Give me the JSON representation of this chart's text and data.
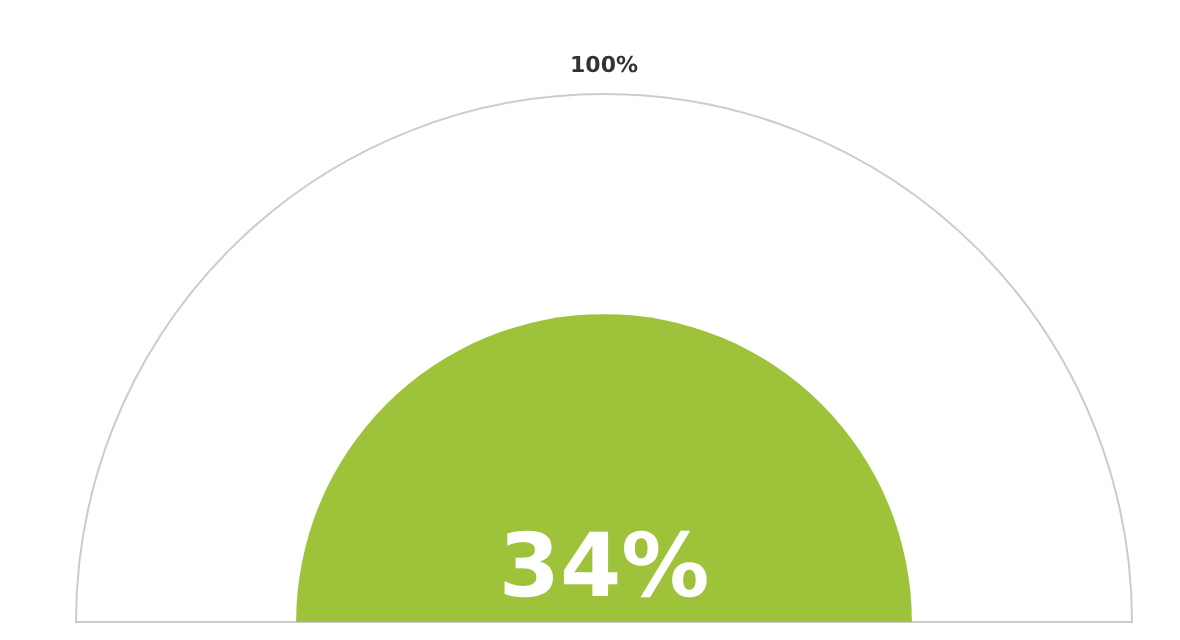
{
  "chart_data": {
    "type": "other",
    "categories": [
      null,
      null
    ],
    "values": [
      100,
      34
    ],
    "value_labels": [
      "100%",
      "34%"
    ],
    "colors": [
      "#cccccc",
      "#9fc23b"
    ]
  }
}
